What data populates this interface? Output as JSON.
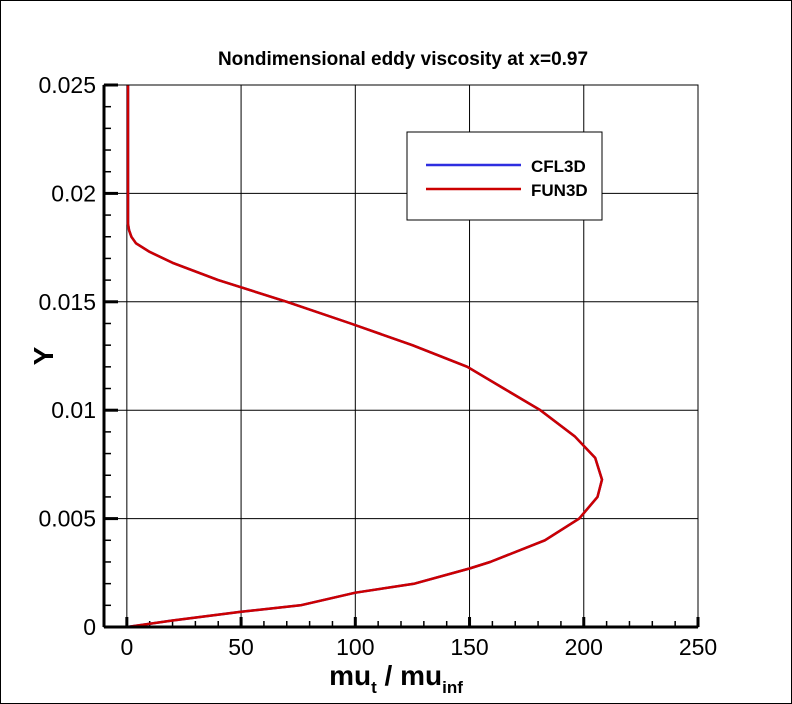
{
  "chart_data": {
    "type": "line",
    "title": "Nondimensional eddy viscosity at x=0.97",
    "xlabel": "mu",
    "xlabel_sub1": "t",
    "xlabel_mid": " / mu",
    "xlabel_sub2": "inf",
    "ylabel": "Y",
    "xlim": [
      -10,
      250
    ],
    "ylim": [
      0,
      0.025
    ],
    "xticks": [
      0,
      50,
      100,
      150,
      200,
      250
    ],
    "xtick_labels": [
      "0",
      "50",
      "100",
      "150",
      "200",
      "250"
    ],
    "yticks": [
      0,
      0.005,
      0.01,
      0.015,
      0.02,
      0.025
    ],
    "ytick_labels": [
      "0",
      "0.005",
      "0.01",
      "0.015",
      "0.02",
      "0.025"
    ],
    "grid": true,
    "legend_position": "top-right",
    "series": [
      {
        "name": "CFL3D",
        "color": "#2e2ee0",
        "x": [
          0,
          20,
          50,
          76,
          100,
          126,
          150,
          159,
          183,
          198,
          206,
          208,
          205,
          196,
          181,
          165,
          149,
          125,
          98,
          70,
          40,
          20,
          10,
          4,
          2,
          1,
          0.5,
          0.5
        ],
        "y": [
          0,
          0.0003,
          0.0007,
          0.001,
          0.00158,
          0.002,
          0.0027,
          0.003,
          0.004,
          0.005,
          0.006,
          0.0068,
          0.0078,
          0.0088,
          0.01,
          0.011,
          0.012,
          0.013,
          0.014,
          0.015,
          0.016,
          0.0168,
          0.0173,
          0.0177,
          0.018,
          0.0183,
          0.0186,
          0.025
        ]
      },
      {
        "name": "FUN3D",
        "color": "#cc0000",
        "x": [
          0,
          20,
          50,
          76,
          100,
          126,
          150,
          159,
          183,
          198,
          206,
          208,
          205,
          196,
          181,
          165,
          149,
          125,
          98,
          70,
          40,
          20,
          10,
          4,
          2,
          1,
          0.5,
          0.5
        ],
        "y": [
          0,
          0.0003,
          0.0007,
          0.001,
          0.00158,
          0.002,
          0.0027,
          0.003,
          0.004,
          0.005,
          0.006,
          0.0068,
          0.0078,
          0.0088,
          0.01,
          0.011,
          0.012,
          0.013,
          0.014,
          0.015,
          0.016,
          0.0168,
          0.0173,
          0.0177,
          0.018,
          0.0183,
          0.0186,
          0.025
        ]
      }
    ]
  }
}
